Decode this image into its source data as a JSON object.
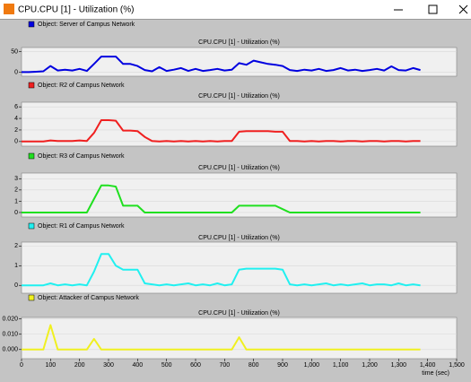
{
  "window": {
    "title": "CPU.CPU [1] - Utilization (%)"
  },
  "chart_data": [
    {
      "type": "line",
      "title": "CPU.CPU [1] - Utilization (%)",
      "x": [
        0,
        25,
        50,
        75,
        100,
        125,
        150,
        175,
        200,
        225,
        250,
        275,
        300,
        325,
        350,
        375,
        400,
        425,
        450,
        475,
        500,
        525,
        550,
        575,
        600,
        625,
        650,
        675,
        700,
        725,
        750,
        775,
        800,
        825,
        850,
        875,
        900,
        925,
        950,
        975,
        1000,
        1025,
        1050,
        1075,
        1100,
        1125,
        1150,
        1175,
        1200,
        1225,
        1250,
        1275,
        1300,
        1325,
        1350,
        1375
      ],
      "series": [
        {
          "name": "Object: Server of Campus Network",
          "color": "#0000e0",
          "values": [
            0,
            0,
            1,
            2,
            15,
            4,
            6,
            4,
            8,
            3,
            20,
            38,
            38,
            38,
            20,
            20,
            15,
            5,
            2,
            12,
            3,
            6,
            10,
            3,
            8,
            3,
            5,
            8,
            4,
            6,
            22,
            18,
            28,
            24,
            20,
            18,
            15,
            5,
            3,
            6,
            4,
            8,
            3,
            5,
            10,
            4,
            6,
            3,
            5,
            8,
            4,
            14,
            5,
            4,
            10,
            5
          ]
        }
      ],
      "xlim": [
        0,
        1500
      ],
      "ylim": [
        -10,
        60
      ],
      "yticks": [
        0,
        50
      ],
      "grid": true
    },
    {
      "type": "line",
      "title": "CPU.CPU [1] - Utilization (%)",
      "x": [
        0,
        25,
        50,
        75,
        100,
        125,
        150,
        175,
        200,
        225,
        250,
        275,
        300,
        325,
        350,
        375,
        400,
        425,
        450,
        475,
        500,
        525,
        550,
        575,
        600,
        625,
        650,
        675,
        700,
        725,
        750,
        775,
        800,
        825,
        850,
        875,
        900,
        925,
        950,
        975,
        1000,
        1025,
        1050,
        1075,
        1100,
        1125,
        1150,
        1175,
        1200,
        1225,
        1250,
        1275,
        1300,
        1325,
        1350,
        1375
      ],
      "series": [
        {
          "name": "Object: R2 of Campus Network",
          "color": "#f02020",
          "values": [
            0,
            0,
            0,
            0,
            0.2,
            0.1,
            0.1,
            0.1,
            0.2,
            0.1,
            1.5,
            3.7,
            3.7,
            3.6,
            1.9,
            1.9,
            1.8,
            0.8,
            0.1,
            0,
            0.1,
            0,
            0.1,
            0,
            0.1,
            0,
            0.1,
            0,
            0.1,
            0.1,
            1.7,
            1.8,
            1.8,
            1.8,
            1.8,
            1.7,
            1.7,
            0.1,
            0.1,
            0,
            0.1,
            0,
            0.1,
            0.1,
            0,
            0.1,
            0.1,
            0,
            0.1,
            0.1,
            0,
            0.1,
            0.1,
            0,
            0.1,
            0.1
          ]
        }
      ],
      "xlim": [
        0,
        1500
      ],
      "ylim": [
        -0.8,
        6.8
      ],
      "yticks": [
        0,
        2,
        4,
        6
      ],
      "grid": true
    },
    {
      "type": "line",
      "title": "CPU.CPU [1] - Utilization (%)",
      "x": [
        0,
        25,
        50,
        75,
        100,
        125,
        150,
        175,
        200,
        225,
        250,
        275,
        300,
        325,
        350,
        375,
        400,
        425,
        450,
        475,
        500,
        525,
        550,
        575,
        600,
        625,
        650,
        675,
        700,
        725,
        750,
        775,
        800,
        825,
        850,
        875,
        900,
        925,
        950,
        975,
        1000,
        1025,
        1050,
        1075,
        1100,
        1125,
        1150,
        1175,
        1200,
        1225,
        1250,
        1275,
        1300,
        1325,
        1350,
        1375
      ],
      "series": [
        {
          "name": "Object: R3 of Campus Network",
          "color": "#20e020",
          "values": [
            0,
            0,
            0,
            0,
            0,
            0,
            0,
            0,
            0,
            0,
            1.2,
            2.4,
            2.4,
            2.3,
            0.6,
            0.6,
            0.6,
            0,
            0,
            0,
            0,
            0,
            0,
            0,
            0,
            0,
            0,
            0,
            0,
            0,
            0.6,
            0.6,
            0.6,
            0.6,
            0.6,
            0.6,
            0.3,
            0,
            0,
            0,
            0,
            0,
            0,
            0,
            0,
            0,
            0,
            0,
            0,
            0,
            0,
            0,
            0,
            0,
            0,
            0
          ]
        }
      ],
      "xlim": [
        0,
        1500
      ],
      "ylim": [
        -0.4,
        3.5
      ],
      "yticks": [
        0,
        1,
        2,
        3
      ],
      "grid": true
    },
    {
      "type": "line",
      "title": "CPU.CPU [1] - Utilization (%)",
      "x": [
        0,
        25,
        50,
        75,
        100,
        125,
        150,
        175,
        200,
        225,
        250,
        275,
        300,
        325,
        350,
        375,
        400,
        425,
        450,
        475,
        500,
        525,
        550,
        575,
        600,
        625,
        650,
        675,
        700,
        725,
        750,
        775,
        800,
        825,
        850,
        875,
        900,
        925,
        950,
        975,
        1000,
        1025,
        1050,
        1075,
        1100,
        1125,
        1150,
        1175,
        1200,
        1225,
        1250,
        1275,
        1300,
        1325,
        1350,
        1375
      ],
      "series": [
        {
          "name": "Object: R1 of Campus Network",
          "color": "#20f0f0",
          "values": [
            0,
            0,
            0,
            0,
            0.1,
            0,
            0.05,
            0,
            0.05,
            0,
            0.7,
            1.6,
            1.6,
            1.0,
            0.8,
            0.8,
            0.8,
            0.1,
            0.05,
            0,
            0.05,
            0,
            0.05,
            0.1,
            0,
            0.05,
            0,
            0.1,
            0,
            0.05,
            0.8,
            0.85,
            0.85,
            0.85,
            0.85,
            0.85,
            0.8,
            0.05,
            0,
            0.05,
            0,
            0.05,
            0.1,
            0,
            0.05,
            0,
            0.05,
            0.1,
            0,
            0.05,
            0.05,
            0,
            0.1,
            0,
            0.05,
            0
          ]
        }
      ],
      "xlim": [
        0,
        1500
      ],
      "ylim": [
        -0.4,
        2.2
      ],
      "yticks": [
        0,
        1,
        2
      ],
      "grid": true
    },
    {
      "type": "line",
      "title": "CPU.CPU [1] - Utilization (%)",
      "x": [
        0,
        25,
        50,
        75,
        100,
        125,
        150,
        175,
        200,
        225,
        250,
        275,
        300,
        325,
        350,
        375,
        400,
        425,
        450,
        475,
        500,
        525,
        550,
        575,
        600,
        625,
        650,
        675,
        700,
        725,
        750,
        775,
        800,
        825,
        850,
        875,
        900,
        925,
        950,
        975,
        1000,
        1025,
        1050,
        1075,
        1100,
        1125,
        1150,
        1175,
        1200,
        1225,
        1250,
        1275,
        1300,
        1325,
        1350,
        1375
      ],
      "series": [
        {
          "name": "Object: Attacker of Campus Network",
          "color": "#f0f020",
          "values": [
            0,
            0,
            0,
            0,
            0.016,
            0,
            0,
            0,
            0,
            0,
            0.007,
            0,
            0,
            0,
            0,
            0,
            0,
            0,
            0,
            0,
            0,
            0,
            0,
            0,
            0,
            0,
            0,
            0,
            0,
            0,
            0.008,
            0,
            0,
            0,
            0,
            0,
            0,
            0,
            0,
            0,
            0,
            0,
            0,
            0,
            0,
            0,
            0,
            0,
            0,
            0,
            0,
            0,
            0,
            0,
            0,
            0
          ]
        }
      ],
      "xlim": [
        0,
        1500
      ],
      "ylim": [
        -0.006,
        0.021
      ],
      "yticks": [
        {
          "value": 0,
          "label": "0.000"
        },
        {
          "value": 0.01,
          "label": "0.010"
        },
        {
          "value": 0.02,
          "label": "0.020"
        }
      ],
      "xticks": [
        0,
        100,
        200,
        300,
        400,
        500,
        600,
        700,
        800,
        900,
        {
          "value": 1000,
          "label": "1,000"
        },
        {
          "value": 1100,
          "label": "1,100"
        },
        {
          "value": 1200,
          "label": "1,200"
        },
        {
          "value": 1300,
          "label": "1,300"
        },
        {
          "value": 1400,
          "label": "1,400"
        },
        {
          "value": 1500,
          "label": "1,500"
        }
      ],
      "xlabel": "time (sec)",
      "grid": true
    }
  ]
}
